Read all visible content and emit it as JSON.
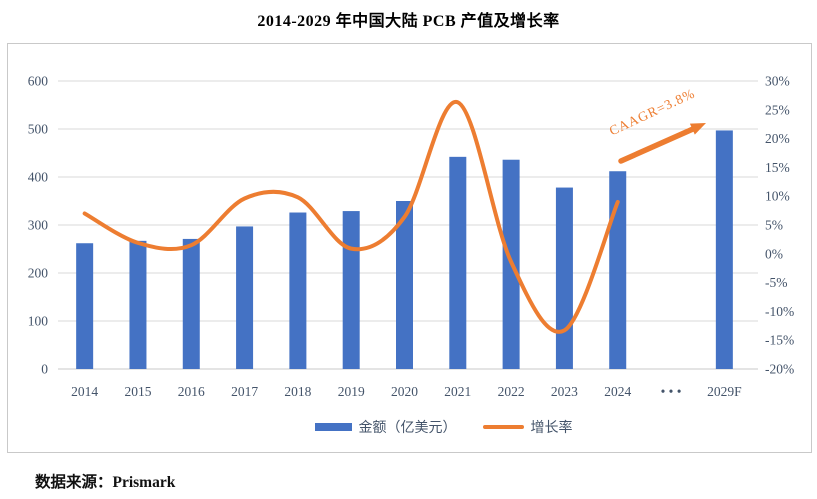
{
  "page": {
    "title": "2014-2029 年中国大陆 PCB 产值及增长率",
    "source": "数据来源：Prismark"
  },
  "legend": {
    "bar_label": "金额（亿美元）",
    "line_label": "增长率"
  },
  "annotation": {
    "text": "CAAGR=3.8%"
  },
  "colors": {
    "bar": "#4472C4",
    "line": "#ED7D31",
    "axis_label": "#44546A",
    "grid": "#D9D9D9",
    "baseline": "#C8C8C8",
    "box_border": "#C9C9C9",
    "annotation": "#ED7D31"
  },
  "chart_data": {
    "type": "bar+line combo",
    "title": "2014-2029 年中国大陆 PCB 产值及增长率",
    "categories": [
      "2014",
      "2015",
      "2016",
      "2017",
      "2018",
      "2019",
      "2020",
      "2021",
      "2022",
      "2023",
      "2024",
      "• • •",
      "2029F"
    ],
    "series": [
      {
        "name": "金额（亿美元）",
        "type": "bar",
        "axis": "left",
        "values": [
          262,
          267,
          271,
          297,
          326,
          329,
          350,
          442,
          436,
          378,
          412,
          null,
          497
        ]
      },
      {
        "name": "增长率",
        "type": "line",
        "axis": "right",
        "unit": "%",
        "values": [
          7.0,
          1.9,
          1.5,
          9.6,
          9.8,
          0.9,
          6.4,
          26.3,
          -1.4,
          -13.3,
          9.0,
          null,
          null
        ]
      }
    ],
    "left_axis": {
      "min": 0,
      "max": 600,
      "step": 100,
      "ticks": [
        "600",
        "500",
        "400",
        "300",
        "200",
        "100",
        "0"
      ]
    },
    "right_axis": {
      "min": -20,
      "max": 30,
      "step": 5,
      "ticks": [
        "30%",
        "25%",
        "20%",
        "15%",
        "10%",
        "5%",
        "0%",
        "-5%",
        "-10%",
        "-15%",
        "-20%"
      ]
    },
    "grid": "horizontal only",
    "legend_position": "bottom",
    "annotation": "CAAGR=3.8% (orange arrow from 2024 bar toward 2029F bar)"
  }
}
